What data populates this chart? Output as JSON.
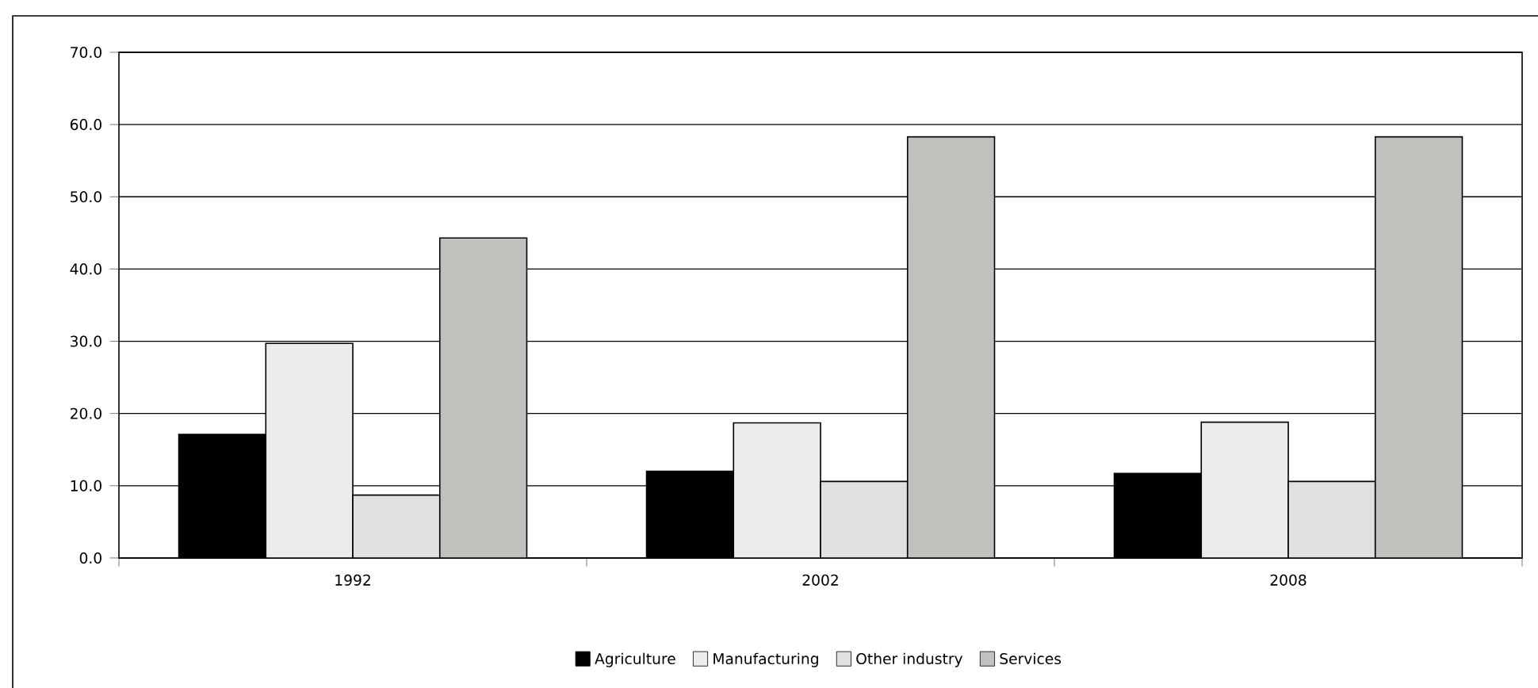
{
  "chart_data": {
    "type": "bar",
    "categories": [
      "1992",
      "2002",
      "2008"
    ],
    "series": [
      {
        "name": "Agriculture",
        "color": "#000000",
        "values": [
          17.1,
          12.0,
          11.7
        ]
      },
      {
        "name": "Manufacturing",
        "color": "#ececec",
        "values": [
          29.7,
          18.7,
          18.8
        ]
      },
      {
        "name": "Other industry",
        "color": "#e0e0e0",
        "values": [
          8.7,
          10.6,
          10.6
        ]
      },
      {
        "name": "Services",
        "color": "#c0c0bc",
        "values": [
          44.3,
          58.3,
          58.3
        ]
      }
    ],
    "ylim": [
      0,
      70
    ],
    "yticks": [
      {
        "value": 0,
        "label": "0.0"
      },
      {
        "value": 10,
        "label": "10.0"
      },
      {
        "value": 20,
        "label": "20.0"
      },
      {
        "value": 30,
        "label": "30.0"
      },
      {
        "value": 40,
        "label": "40.0"
      },
      {
        "value": 50,
        "label": "50.0"
      },
      {
        "value": 60,
        "label": "60.0"
      },
      {
        "value": 70,
        "label": "70.0"
      }
    ],
    "grid": "y",
    "legend": "bottom"
  }
}
